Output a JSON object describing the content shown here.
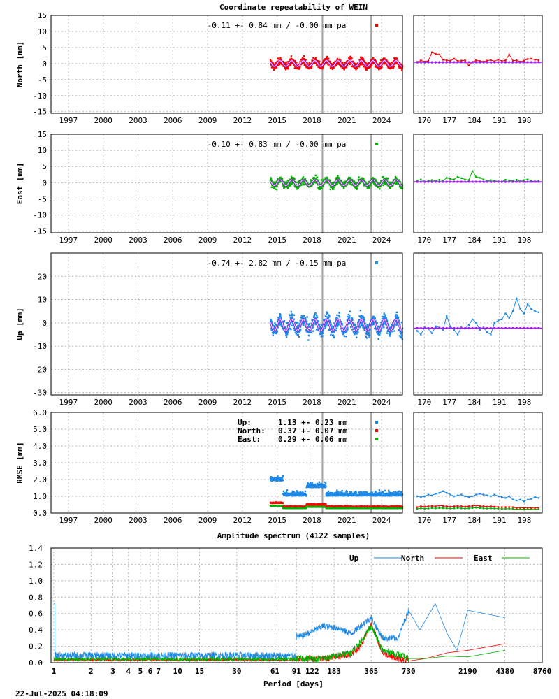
{
  "title": "Coordinate repeatability of WEIN",
  "timestamp": "22-Jul-2025 04:18:09",
  "colors": {
    "north": "#ff0000",
    "east": "#00b000",
    "up": "#1e88e5",
    "model": "#a020f0",
    "break": "#a0a0a0"
  },
  "chart_data": [
    {
      "id": "north",
      "type": "scatter",
      "ylabel": "North [mm]",
      "stat": "-0.11 +- 0.84 mm / -0.00 mm pa",
      "xlim": [
        1995.5,
        2025.8
      ],
      "ylim": [
        -15.5,
        15
      ],
      "xticks": [
        1997,
        2000,
        2003,
        2006,
        2009,
        2012,
        2015,
        2018,
        2021,
        2024
      ],
      "yticks": [
        15,
        10,
        5,
        0,
        -5,
        -10,
        -15
      ],
      "data_start": 2014.4,
      "data_end": 2025.8,
      "scatter_sd": 1.1,
      "seasonal_amp": 0.9,
      "offset": 0,
      "breaks": [
        2018.9,
        2023.1
      ],
      "recent": {
        "xticks": [
          170,
          177,
          184,
          191,
          198
        ],
        "xlim": [
          167,
          203
        ],
        "values": [
          0.5,
          1.0,
          0.6,
          0.8,
          3.5,
          3.0,
          2.8,
          1.2,
          1.0,
          0.9,
          1.5,
          0.8,
          0.9,
          1.0,
          -0.6,
          0.5,
          1.0,
          0.8,
          0.6,
          0.9,
          1.1,
          0.7,
          1.2,
          0.8,
          1.0,
          2.8,
          0.9,
          1.0,
          0.6,
          0.9,
          1.4,
          1.5,
          1.2,
          1.0
        ],
        "model": 0.4
      }
    },
    {
      "id": "east",
      "type": "scatter",
      "ylabel": "East [mm]",
      "stat": "-0.10 +- 0.83 mm / -0.00 mm pa",
      "xlim": [
        1995.5,
        2025.8
      ],
      "ylim": [
        -15.5,
        15
      ],
      "xticks": [
        1997,
        2000,
        2003,
        2006,
        2009,
        2012,
        2015,
        2018,
        2021,
        2024
      ],
      "yticks": [
        15,
        10,
        5,
        0,
        -5,
        -10,
        -15
      ],
      "data_start": 2014.4,
      "data_end": 2025.8,
      "scatter_sd": 1.1,
      "seasonal_amp": 0.9,
      "offset": 0,
      "breaks": [
        2018.9,
        2023.1
      ],
      "recent": {
        "xticks": [
          170,
          177,
          184,
          191,
          198
        ],
        "xlim": [
          167,
          203
        ],
        "values": [
          0.6,
          1.0,
          0.3,
          0.5,
          0.8,
          0.5,
          0.9,
          0.6,
          1.5,
          1.2,
          1.0,
          1.8,
          1.4,
          1.0,
          0.8,
          3.6,
          1.8,
          1.5,
          1.0,
          0.5,
          0.8,
          0.6,
          0.4,
          0.3,
          0.9,
          0.7,
          0.6,
          0.9,
          0.4,
          0.8,
          1.0,
          0.5,
          0.4,
          0.6
        ],
        "model": 0.3
      }
    },
    {
      "id": "up",
      "type": "scatter",
      "ylabel": "Up [mm]",
      "stat": "-0.74 +- 2.82 mm / -0.15 mm pa",
      "xlim": [
        1995.5,
        2025.8
      ],
      "ylim": [
        -31,
        30
      ],
      "xticks": [
        1997,
        2000,
        2003,
        2006,
        2009,
        2012,
        2015,
        2018,
        2021,
        2024
      ],
      "yticks": [
        20,
        10,
        0,
        -10,
        -20,
        -30
      ],
      "data_start": 2014.4,
      "data_end": 2025.8,
      "scatter_sd": 3.0,
      "seasonal_amp": 2.5,
      "offset": -1.0,
      "breaks": [
        2018.9,
        2023.1
      ],
      "recent": {
        "xticks": [
          170,
          177,
          184,
          191,
          198
        ],
        "xlim": [
          167,
          203
        ],
        "values": [
          -3.5,
          -5.0,
          -2.0,
          -2.5,
          -4.5,
          -1.5,
          -2.0,
          -3.0,
          3.0,
          -1.5,
          -3.0,
          -5.0,
          -2.0,
          -2.5,
          -1.0,
          1.5,
          0.0,
          -3.0,
          -2.0,
          -4.0,
          -5.0,
          0.0,
          1.0,
          1.5,
          4.0,
          2.0,
          5.0,
          10.5,
          6.0,
          4.0,
          8.0,
          6.0,
          5.0,
          4.5
        ],
        "model": -2.3
      }
    },
    {
      "id": "rmse",
      "type": "scatter",
      "ylabel": "RMSE [mm]",
      "xlim": [
        1995.5,
        2025.8
      ],
      "ylim": [
        0,
        6
      ],
      "xticks": [
        1997,
        2000,
        2003,
        2006,
        2009,
        2012,
        2015,
        2018,
        2021,
        2024
      ],
      "yticks": [
        6.0,
        5.0,
        4.0,
        3.0,
        2.0,
        1.0,
        0.0
      ],
      "data_start": 2014.4,
      "data_end": 2025.8,
      "breaks": [
        2018.9,
        2023.1
      ],
      "legend": [
        {
          "name": "Up:",
          "value": "1.13 +- 0.23 mm",
          "key": "up"
        },
        {
          "name": "North:",
          "value": "0.37 +- 0.07 mm",
          "key": "north"
        },
        {
          "name": "East:",
          "value": "0.29 +- 0.06 mm",
          "key": "east"
        }
      ],
      "levels": {
        "up": 1.13,
        "north": 0.37,
        "east": 0.29
      },
      "recent": {
        "xticks": [
          170,
          177,
          184,
          191,
          198
        ],
        "xlim": [
          167,
          203
        ],
        "up": [
          1.0,
          0.95,
          1.0,
          1.1,
          1.05,
          1.15,
          1.2,
          1.3,
          1.2,
          1.1,
          1.0,
          1.05,
          1.1,
          1.0,
          0.95,
          1.0,
          1.1,
          1.15,
          1.1,
          1.05,
          1.0,
          1.1,
          1.0,
          0.95,
          0.9,
          1.0,
          0.8,
          0.75,
          0.8,
          0.7,
          0.8,
          0.85,
          0.95,
          0.9
        ],
        "north": [
          0.35,
          0.4,
          0.38,
          0.4,
          0.42,
          0.4,
          0.45,
          0.42,
          0.4,
          0.38,
          0.4,
          0.42,
          0.4,
          0.38,
          0.4,
          0.42,
          0.45,
          0.42,
          0.4,
          0.38,
          0.4,
          0.38,
          0.36,
          0.35,
          0.35,
          0.36,
          0.35,
          0.3,
          0.32,
          0.3,
          0.32,
          0.3,
          0.3,
          0.32
        ],
        "east": [
          0.25,
          0.28,
          0.26,
          0.27,
          0.3,
          0.28,
          0.3,
          0.29,
          0.28,
          0.27,
          0.28,
          0.3,
          0.28,
          0.27,
          0.28,
          0.3,
          0.32,
          0.3,
          0.28,
          0.27,
          0.28,
          0.27,
          0.26,
          0.25,
          0.25,
          0.26,
          0.25,
          0.22,
          0.24,
          0.22,
          0.24,
          0.22,
          0.22,
          0.24
        ]
      }
    },
    {
      "id": "spectrum",
      "type": "line",
      "title": "Amplitude spectrum (4122 samples)",
      "xlabel": "Period [days]",
      "xscale": "log",
      "xlim": [
        0.95,
        8760
      ],
      "ylim": [
        0,
        1.4
      ],
      "xtick_labels": [
        "1",
        "2",
        "3",
        "4",
        "5",
        "6",
        "7",
        "10",
        "15",
        "30",
        "61",
        "91",
        "122",
        "183",
        "365",
        "730",
        "2190",
        "4380",
        "8760"
      ],
      "xtick_values": [
        1,
        2,
        3,
        4,
        5,
        6,
        7,
        10,
        15,
        30,
        61,
        91,
        122,
        183,
        365,
        730,
        2190,
        4380,
        8760
      ],
      "yticks": [
        0.0,
        0.2,
        0.4,
        0.6,
        0.8,
        1.0,
        1.2,
        1.4
      ],
      "legend": [
        "Up",
        "North",
        "East"
      ],
      "series": [
        {
          "name": "Up",
          "key": "up",
          "peaks": [
            [
              1,
              0.72
            ],
            [
              1.02,
              0.25
            ],
            [
              100,
              0.32
            ],
            [
              150,
              0.45
            ],
            [
              200,
              0.42
            ],
            [
              250,
              0.35
            ],
            [
              300,
              0.45
            ],
            [
              365,
              0.55
            ],
            [
              450,
              0.3
            ],
            [
              600,
              0.3
            ],
            [
              730,
              0.64
            ],
            [
              900,
              0.4
            ],
            [
              1200,
              0.72
            ],
            [
              1500,
              0.35
            ],
            [
              1800,
              0.15
            ],
            [
              2190,
              0.64
            ],
            [
              4380,
              0.55
            ]
          ]
        },
        {
          "name": "North",
          "key": "north",
          "peaks": [
            [
              150,
              0.05
            ],
            [
              250,
              0.1
            ],
            [
              300,
              0.2
            ],
            [
              365,
              0.48
            ],
            [
              450,
              0.12
            ],
            [
              600,
              0.05
            ],
            [
              730,
              0.02
            ],
            [
              1000,
              0.05
            ],
            [
              1500,
              0.12
            ],
            [
              2190,
              0.15
            ],
            [
              4380,
              0.23
            ]
          ]
        },
        {
          "name": "East",
          "key": "east",
          "peaks": [
            [
              150,
              0.05
            ],
            [
              250,
              0.12
            ],
            [
              300,
              0.25
            ],
            [
              365,
              0.45
            ],
            [
              450,
              0.15
            ],
            [
              600,
              0.1
            ],
            [
              730,
              0.05
            ],
            [
              1000,
              0.05
            ],
            [
              1500,
              0.08
            ],
            [
              2190,
              0.07
            ],
            [
              4380,
              0.15
            ]
          ]
        }
      ]
    }
  ]
}
